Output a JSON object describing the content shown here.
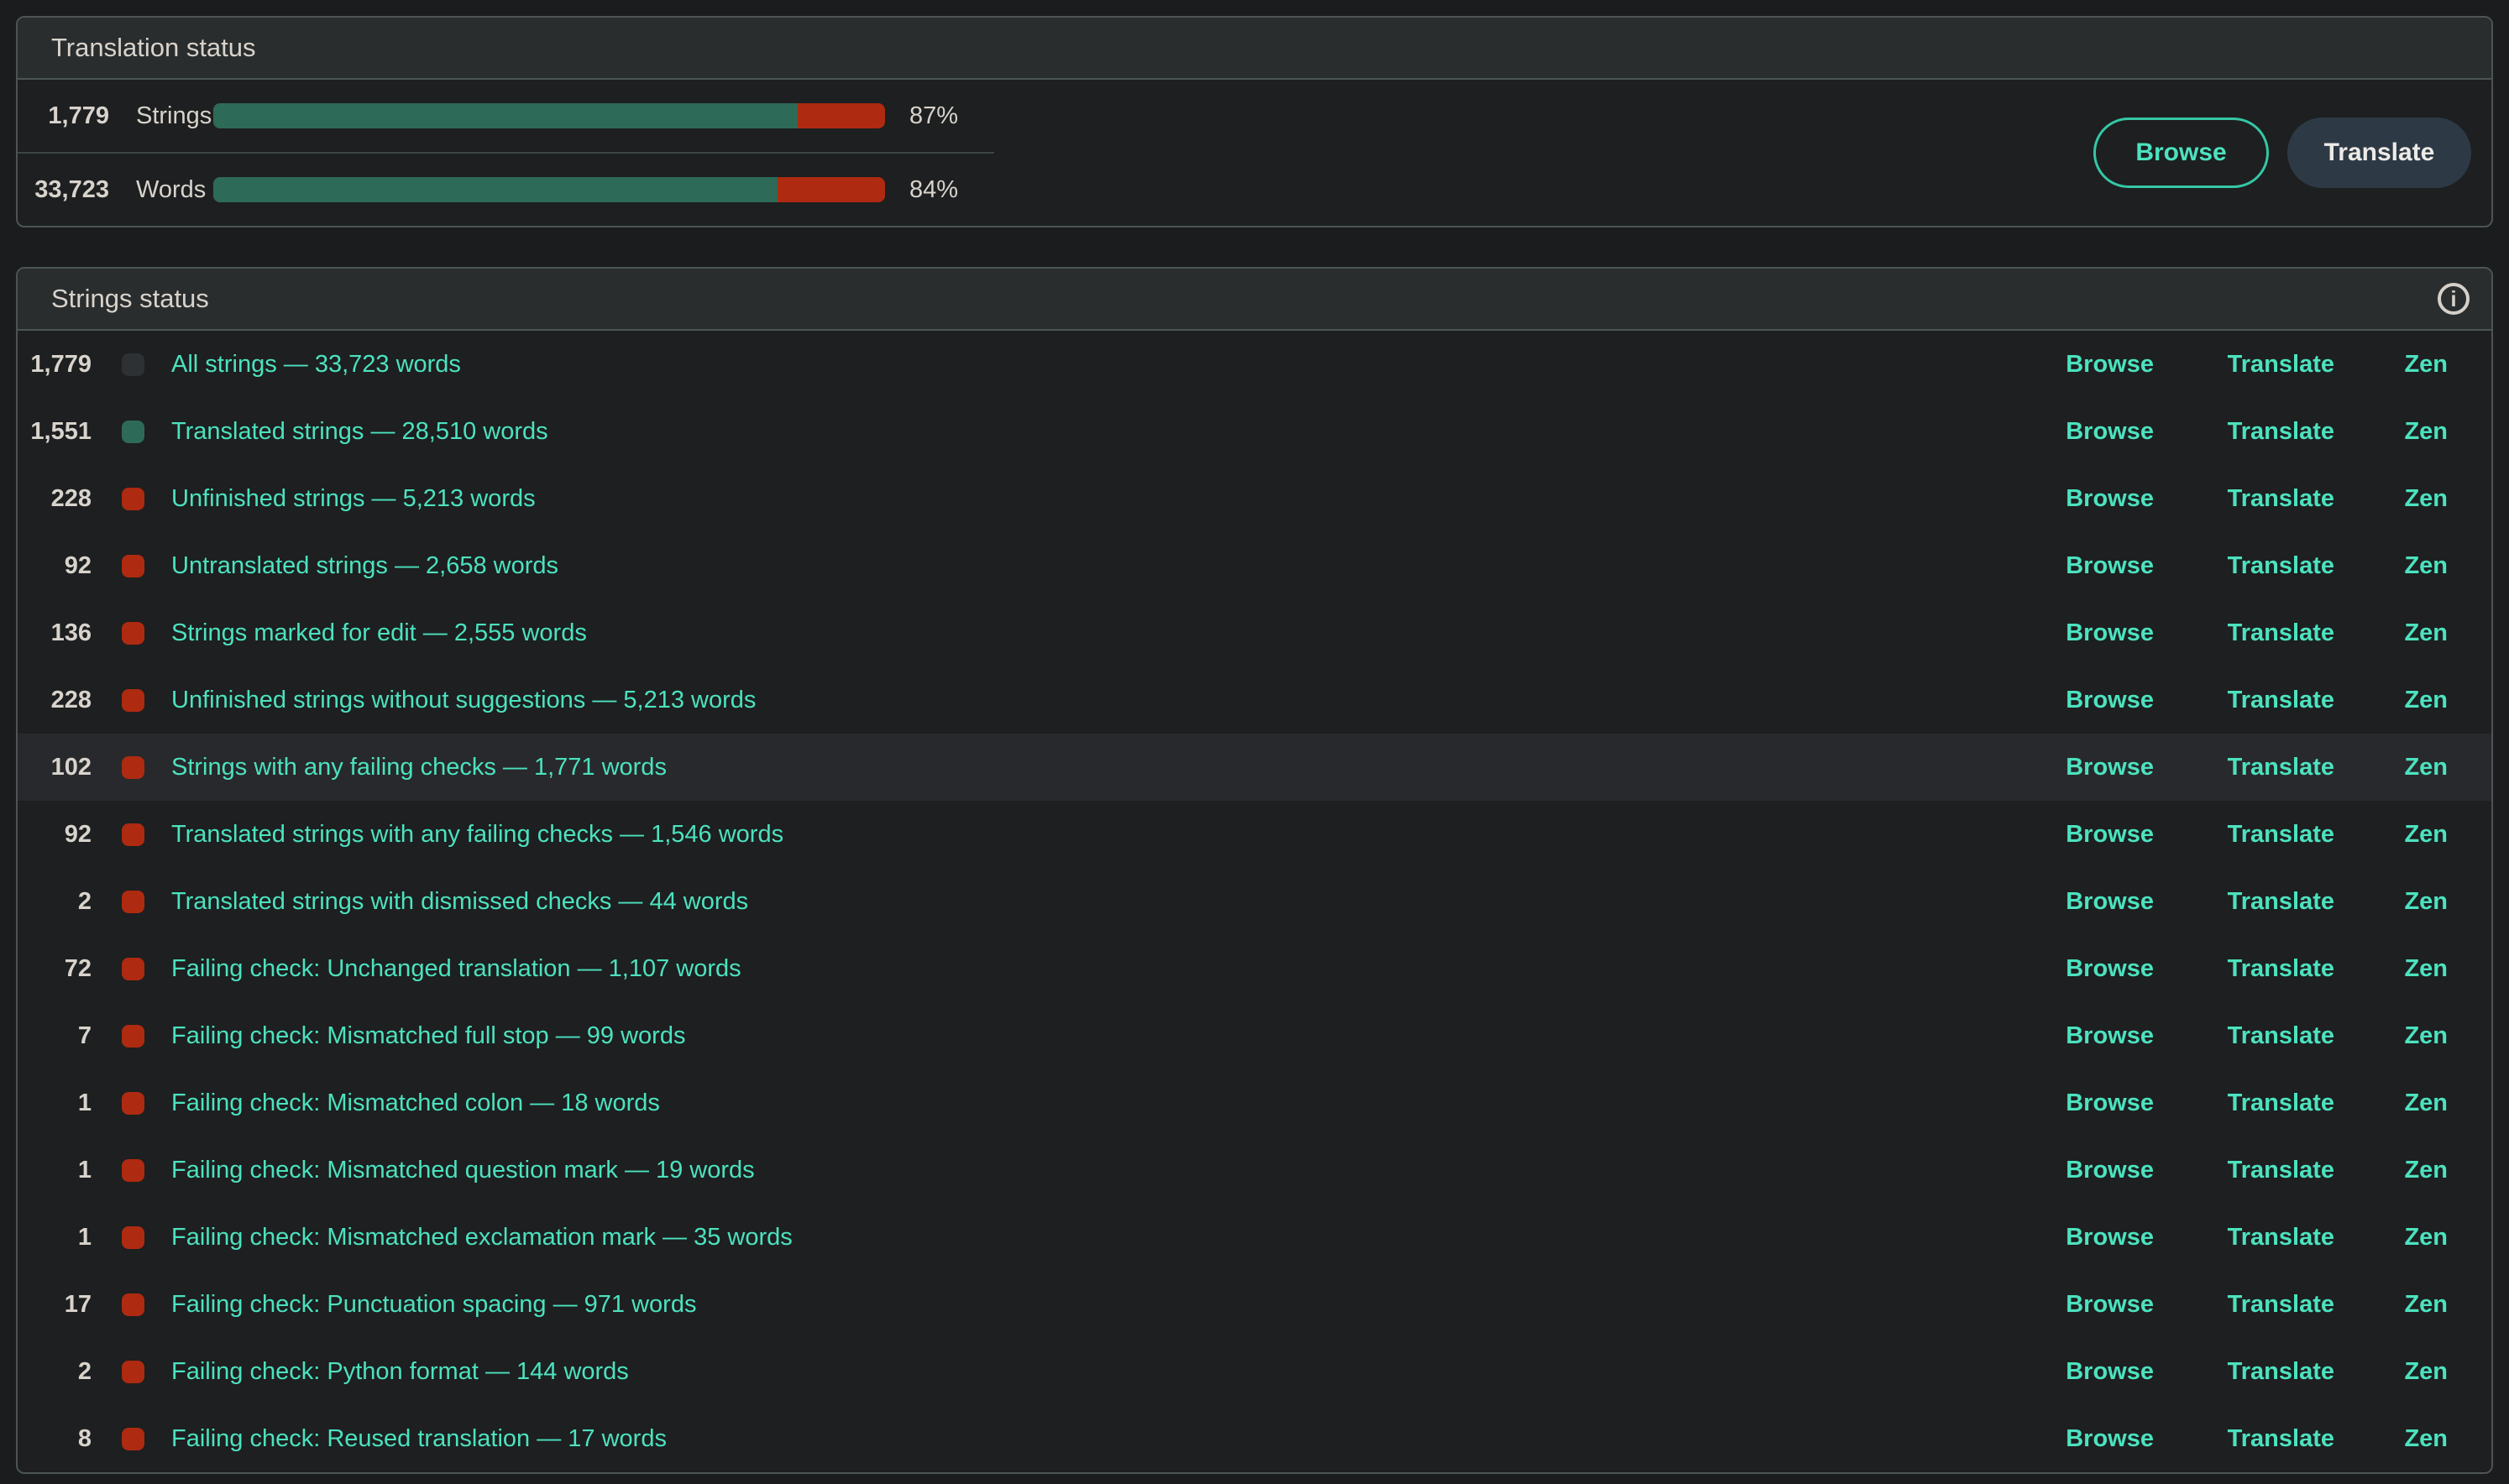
{
  "colors": {
    "accent_link": "#4ce2bf",
    "translated_green": "#2d6a57",
    "unfinished_red": "#ae2a10",
    "neutral_badge": "#2e3133",
    "text": "#d8d3cc",
    "panel_header_bg": "#2a2d2e",
    "panel_body_bg": "#1d1f20",
    "translate_button_bg": "#2d3a45",
    "browse_button_border": "#35c7a6",
    "highlight_row_bg": "#28292c"
  },
  "translation_status": {
    "title": "Translation status",
    "rows": [
      {
        "count": "1,779",
        "label": "Strings",
        "percent": "87%",
        "value": 87
      },
      {
        "count": "33,723",
        "label": "Words",
        "percent": "84%",
        "value": 84
      }
    ],
    "buttons": {
      "browse": "Browse",
      "translate": "Translate"
    }
  },
  "strings_status": {
    "title": "Strings status",
    "info_icon": "i",
    "actions": {
      "browse": "Browse",
      "translate": "Translate",
      "zen": "Zen"
    },
    "rows": [
      {
        "count": "1,779",
        "badge": "neutral",
        "label": "All strings — 33,723 words",
        "highlight": false
      },
      {
        "count": "1,551",
        "badge": "green",
        "label": "Translated strings — 28,510 words",
        "highlight": false
      },
      {
        "count": "228",
        "badge": "red",
        "label": "Unfinished strings — 5,213 words",
        "highlight": false
      },
      {
        "count": "92",
        "badge": "red",
        "label": "Untranslated strings — 2,658 words",
        "highlight": false
      },
      {
        "count": "136",
        "badge": "red",
        "label": "Strings marked for edit — 2,555 words",
        "highlight": false
      },
      {
        "count": "228",
        "badge": "red",
        "label": "Unfinished strings without suggestions — 5,213 words",
        "highlight": false
      },
      {
        "count": "102",
        "badge": "red",
        "label": "Strings with any failing checks — 1,771 words",
        "highlight": true
      },
      {
        "count": "92",
        "badge": "red",
        "label": "Translated strings with any failing checks — 1,546 words",
        "highlight": false
      },
      {
        "count": "2",
        "badge": "red",
        "label": "Translated strings with dismissed checks — 44 words",
        "highlight": false
      },
      {
        "count": "72",
        "badge": "red",
        "label": "Failing check: Unchanged translation — 1,107 words",
        "highlight": false
      },
      {
        "count": "7",
        "badge": "red",
        "label": "Failing check: Mismatched full stop — 99 words",
        "highlight": false
      },
      {
        "count": "1",
        "badge": "red",
        "label": "Failing check: Mismatched colon — 18 words",
        "highlight": false
      },
      {
        "count": "1",
        "badge": "red",
        "label": "Failing check: Mismatched question mark — 19 words",
        "highlight": false
      },
      {
        "count": "1",
        "badge": "red",
        "label": "Failing check: Mismatched exclamation mark — 35 words",
        "highlight": false
      },
      {
        "count": "17",
        "badge": "red",
        "label": "Failing check: Punctuation spacing — 971 words",
        "highlight": false
      },
      {
        "count": "2",
        "badge": "red",
        "label": "Failing check: Python format — 144 words",
        "highlight": false
      },
      {
        "count": "8",
        "badge": "red",
        "label": "Failing check: Reused translation — 17 words",
        "highlight": false
      }
    ]
  }
}
